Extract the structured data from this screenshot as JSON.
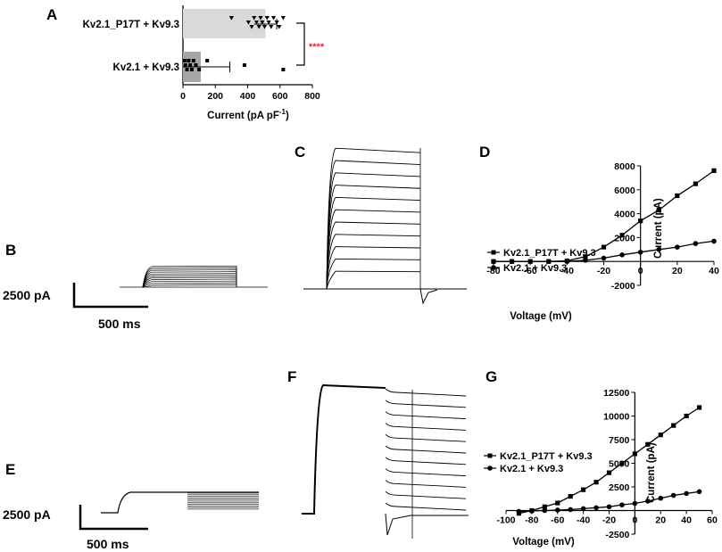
{
  "panels": {
    "A": "A",
    "B": "B",
    "C": "C",
    "D": "D",
    "E": "E",
    "F": "F",
    "G": "G"
  },
  "chart_data": [
    {
      "panel": "A",
      "type": "bar",
      "orientation": "horizontal",
      "categories": [
        "Kv2.1_P17T + Kv9.3",
        "Kv2.1 +  Kv9.3"
      ],
      "values": [
        510,
        110
      ],
      "errors": [
        [
          440,
          580
        ],
        [
          0,
          290
        ]
      ],
      "points": [
        [
          300,
          405,
          425,
          440,
          455,
          470,
          480,
          490,
          505,
          520,
          530,
          545,
          560,
          580,
          595,
          620
        ],
        [
          10,
          15,
          25,
          35,
          45,
          55,
          65,
          80,
          100,
          150,
          380,
          620
        ]
      ],
      "xlabel_main": "Current (pA pF",
      "xlabel_sup": "-1",
      "xlabel_end": ")",
      "xlim": [
        0,
        800
      ],
      "xticks": [
        "0",
        "200",
        "400",
        "600",
        "800"
      ],
      "significance": "****",
      "colors": [
        "#d9d9d9",
        "#a6a6a6"
      ],
      "significance_color": "#e8282e"
    },
    {
      "panel": "D",
      "type": "line",
      "x": [
        -80,
        -70,
        -60,
        -50,
        -40,
        -30,
        -20,
        -10,
        0,
        10,
        20,
        30,
        40
      ],
      "series": [
        {
          "name": "Kv2.1_P17T + Kv9.3",
          "marker": "square",
          "values": [
            0,
            0,
            0,
            0,
            50,
            400,
            1200,
            2200,
            3400,
            4300,
            5500,
            6500,
            7600
          ]
        },
        {
          "name": "Kv2.1 + Kv9.3",
          "marker": "circle",
          "values": [
            0,
            0,
            0,
            0,
            0,
            100,
            280,
            550,
            780,
            1000,
            1200,
            1500,
            1700
          ]
        }
      ],
      "xlabel": "Voltage (mV)",
      "ylabel": "Current (pA)",
      "xlim": [
        -80,
        40
      ],
      "ylim": [
        -2000,
        8000
      ],
      "xticks": [
        "-80",
        "-60",
        "-40",
        "-20",
        "0",
        "20",
        "40"
      ],
      "yticks": [
        "-2000",
        "2000",
        "4000",
        "6000",
        "8000"
      ]
    },
    {
      "panel": "G",
      "type": "line",
      "x": [
        -90,
        -80,
        -70,
        -60,
        -50,
        -40,
        -30,
        -20,
        -10,
        0,
        10,
        20,
        30,
        40,
        50
      ],
      "series": [
        {
          "name": "Kv2.1_P17T + Kv9.3",
          "marker": "square",
          "values": [
            -300,
            0,
            400,
            800,
            1500,
            2200,
            3000,
            4000,
            5000,
            6000,
            7000,
            8000,
            9000,
            10000,
            10900
          ]
        },
        {
          "name": "Kv2.1 + Kv9.3",
          "marker": "circle",
          "values": [
            -100,
            -50,
            0,
            50,
            100,
            200,
            300,
            400,
            600,
            750,
            1000,
            1300,
            1600,
            1800,
            2000
          ]
        }
      ],
      "xlabel": "Voltage (mV)",
      "ylabel": "Current (pA)",
      "xlim": [
        -100,
        60
      ],
      "ylim": [
        -2500,
        12500
      ],
      "xticks": [
        "-100",
        "-80",
        "-60",
        "-40",
        "-20",
        "0",
        "20",
        "40",
        "60"
      ],
      "yticks": [
        "-2500",
        "2500",
        "5000",
        "7500",
        "10000",
        "12500"
      ]
    }
  ],
  "scalebars": {
    "B": {
      "current": "2500 pA",
      "time": "500 ms"
    },
    "E": {
      "current": "2500 pA",
      "time": "500 ms"
    }
  }
}
